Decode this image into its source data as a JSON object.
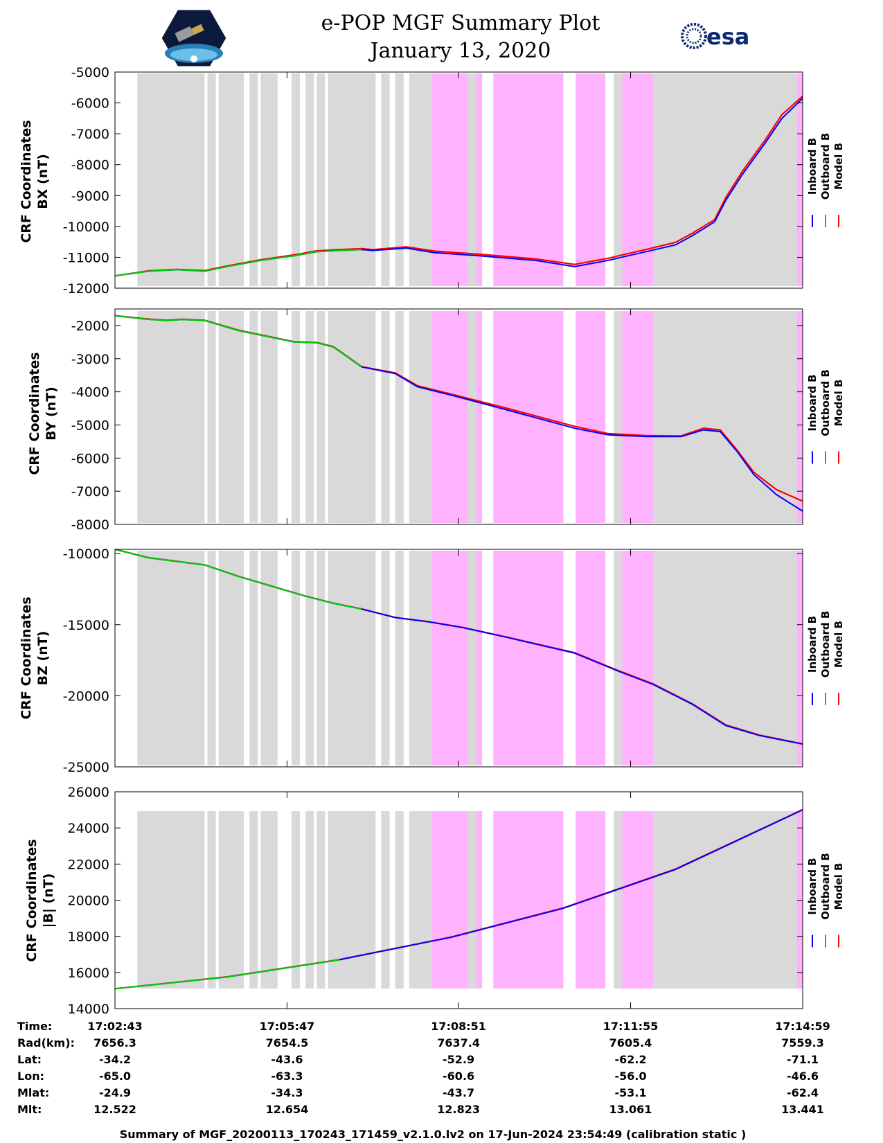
{
  "header": {
    "title_line1": "e-POP MGF Summary Plot",
    "title_line2": "January 13, 2020",
    "esa_label": "esa"
  },
  "colors": {
    "inboard": "#0000ff",
    "outboard": "#00cc00",
    "model": "#ff0000",
    "gray_band": "#d9d9d9",
    "pink_band": "#ffb3ff"
  },
  "chart_data": {
    "type": "line",
    "time_range_min": [
      0,
      12.27
    ],
    "x_tick_positions_min": [
      0,
      3.07,
      6.13,
      9.2,
      12.27
    ],
    "bands": {
      "gray": [
        [
          0.4,
          1.6
        ],
        [
          1.65,
          1.8
        ],
        [
          1.85,
          2.3
        ],
        [
          2.4,
          2.55
        ],
        [
          2.6,
          2.9
        ],
        [
          3.15,
          3.3
        ],
        [
          3.4,
          3.55
        ],
        [
          3.6,
          3.75
        ],
        [
          3.8,
          4.65
        ],
        [
          4.75,
          4.9
        ],
        [
          5.0,
          5.15
        ],
        [
          5.25,
          5.65
        ],
        [
          6.05,
          6.2
        ],
        [
          6.3,
          6.55
        ],
        [
          8.25,
          8.6
        ],
        [
          8.9,
          9.05
        ],
        [
          9.6,
          12.27
        ]
      ],
      "pink": [
        [
          5.65,
          6.3
        ],
        [
          6.45,
          6.55
        ],
        [
          6.75,
          8.0
        ],
        [
          8.22,
          8.75
        ],
        [
          9.05,
          9.6
        ],
        [
          12.17,
          12.27
        ]
      ]
    },
    "legend": [
      "Inboard B",
      "Outboard B",
      "Model B"
    ],
    "panels": [
      {
        "name": "BX",
        "ylabel_line1": "CRF Coordinates",
        "ylabel_line2": "BX (nT)",
        "ylim": [
          -12000,
          -5000
        ],
        "yticks": [
          "-5000",
          "-6000",
          "-7000",
          "-8000",
          "-9000",
          "-10000",
          "-11000",
          "-12000"
        ],
        "ytick_values": [
          -5000,
          -6000,
          -7000,
          -8000,
          -9000,
          -10000,
          -11000,
          -12000
        ],
        "outboard_end": 4.4,
        "t": [
          0,
          0.6,
          1.1,
          1.6,
          2.0,
          2.6,
          3.2,
          3.6,
          4.0,
          4.4,
          4.6,
          5.2,
          5.7,
          6.5,
          7.5,
          8.2,
          8.8,
          9.4,
          10.0,
          10.3,
          10.7,
          10.9,
          11.2,
          11.6,
          11.9,
          12.27
        ],
        "inboard": [
          -11600,
          -11450,
          -11400,
          -11450,
          -11300,
          -11100,
          -10950,
          -10820,
          -10780,
          -10750,
          -10780,
          -10700,
          -10850,
          -10950,
          -11100,
          -11300,
          -11100,
          -10850,
          -10600,
          -10300,
          -9850,
          -9150,
          -8300,
          -7300,
          -6500,
          -5850
        ],
        "model": [
          -11600,
          -11440,
          -11390,
          -11430,
          -11280,
          -11080,
          -10920,
          -10790,
          -10750,
          -10720,
          -10750,
          -10660,
          -10800,
          -10900,
          -11050,
          -11230,
          -11030,
          -10780,
          -10520,
          -10220,
          -9780,
          -9060,
          -8200,
          -7200,
          -6380,
          -5780
        ]
      },
      {
        "name": "BY",
        "ylabel_line1": "CRF Coordinates",
        "ylabel_line2": "BY (nT)",
        "ylim": [
          -8000,
          -1500
        ],
        "yticks": [
          "-2000",
          "-3000",
          "-4000",
          "-5000",
          "-6000",
          "-7000",
          "-8000"
        ],
        "ytick_values": [
          -2000,
          -3000,
          -4000,
          -5000,
          -6000,
          -7000,
          -8000
        ],
        "outboard_end": 4.4,
        "t": [
          0,
          0.5,
          0.9,
          1.2,
          1.6,
          2.2,
          3.2,
          3.6,
          3.9,
          4.4,
          5.0,
          5.4,
          6.0,
          7.0,
          8.2,
          8.8,
          9.5,
          10.1,
          10.5,
          10.8,
          11.1,
          11.4,
          11.8,
          12.27
        ],
        "inboard": [
          -1700,
          -1800,
          -1850,
          -1820,
          -1850,
          -2150,
          -2500,
          -2520,
          -2650,
          -3250,
          -3450,
          -3850,
          -4100,
          -4550,
          -5100,
          -5300,
          -5350,
          -5350,
          -5150,
          -5200,
          -5800,
          -6500,
          -7100,
          -7600
        ],
        "model": [
          -1700,
          -1790,
          -1840,
          -1810,
          -1840,
          -2140,
          -2490,
          -2510,
          -2640,
          -3240,
          -3430,
          -3820,
          -4070,
          -4500,
          -5040,
          -5260,
          -5320,
          -5330,
          -5100,
          -5150,
          -5760,
          -6430,
          -6950,
          -7300
        ]
      },
      {
        "name": "BZ",
        "ylabel_line1": "CRF Coordinates",
        "ylabel_line2": "BZ (nT)",
        "ylim": [
          -25000,
          -9700
        ],
        "yticks": [
          "-10000",
          "-15000",
          "-20000",
          "-25000"
        ],
        "ytick_values": [
          -10000,
          -15000,
          -20000,
          -25000
        ],
        "outboard_end": 4.4,
        "t": [
          0,
          0.6,
          1.2,
          1.6,
          2.2,
          2.8,
          3.4,
          3.9,
          4.4,
          5.0,
          5.6,
          6.2,
          7.0,
          8.2,
          9.0,
          9.6,
          10.3,
          10.9,
          11.5,
          12.27
        ],
        "inboard": [
          -9700,
          -10300,
          -10600,
          -10800,
          -11600,
          -12300,
          -13000,
          -13500,
          -13900,
          -14500,
          -14800,
          -15200,
          -15900,
          -17000,
          -18300,
          -19200,
          -20600,
          -22100,
          -22800,
          -23400
        ],
        "model": [
          -9700,
          -10290,
          -10590,
          -10790,
          -11590,
          -12290,
          -12990,
          -13490,
          -13890,
          -14490,
          -14790,
          -15190,
          -15880,
          -16970,
          -18260,
          -19160,
          -20560,
          -22050,
          -22770,
          -23380
        ]
      },
      {
        "name": "|B|",
        "ylabel_line1": "CRF Coordinates",
        "ylabel_line2": "|B| (nT)",
        "ylim": [
          14000,
          26000
        ],
        "yticks": [
          "26000",
          "24000",
          "22000",
          "20000",
          "18000",
          "16000",
          "14000"
        ],
        "ytick_values": [
          26000,
          24000,
          22000,
          20000,
          18000,
          16000,
          14000
        ],
        "outboard_end": 4.4,
        "t": [
          0,
          2,
          4,
          6,
          8,
          10,
          12.27
        ],
        "inboard": [
          15100,
          15750,
          16700,
          17950,
          19550,
          21700,
          25000
        ],
        "model": [
          15100,
          15760,
          16710,
          17960,
          19570,
          21720,
          25010
        ]
      }
    ]
  },
  "table": {
    "labels": [
      "Time:",
      "Rad(km):",
      "Lat:",
      "Lon:",
      "Mlat:",
      "Mlt:"
    ],
    "columns": [
      [
        "17:02:43",
        "7656.3",
        "-34.2",
        "-65.0",
        "-24.9",
        "12.522"
      ],
      [
        "17:05:47",
        "7654.5",
        "-43.6",
        "-63.3",
        "-34.3",
        "12.654"
      ],
      [
        "17:08:51",
        "7637.4",
        "-52.9",
        "-60.6",
        "-43.7",
        "12.823"
      ],
      [
        "17:11:55",
        "7605.4",
        "-62.2",
        "-56.0",
        "-53.1",
        "13.061"
      ],
      [
        "17:14:59",
        "7559.3",
        "-71.1",
        "-46.6",
        "-62.4",
        "13.441"
      ]
    ]
  },
  "footer": {
    "summary": "Summary of MGF_20200113_170243_171459_v2.1.0.lv2 on 17-Jun-2024 23:54:49 (calibration static )"
  }
}
